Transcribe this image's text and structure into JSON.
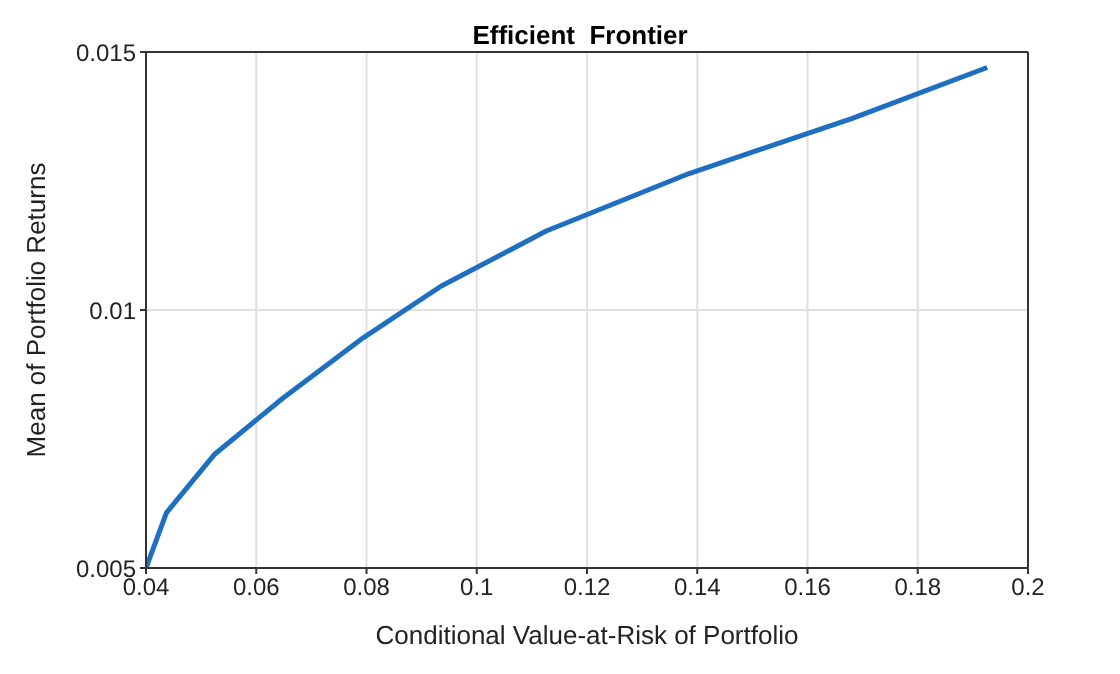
{
  "chart_data": {
    "type": "line",
    "title": "Efficient  Frontier",
    "xlabel": "Conditional Value-at-Risk of Portfolio",
    "ylabel": "Mean of Portfolio Returns",
    "x": [
      0.04,
      0.0437,
      0.0525,
      0.0647,
      0.0794,
      0.0935,
      0.1126,
      0.1384,
      0.168,
      0.1926
    ],
    "series": [
      {
        "color": "#1f6fc0",
        "values": [
          0.005,
          0.00607,
          0.00721,
          0.00828,
          0.00946,
          0.01046,
          0.01153,
          0.01264,
          0.01371,
          0.0147
        ]
      }
    ],
    "xlim": [
      0.04,
      0.2
    ],
    "xticks": [
      0.04,
      0.06,
      0.08,
      0.1,
      0.12,
      0.14,
      0.16,
      0.18,
      0.2
    ],
    "ylim": [
      0.005,
      0.015
    ],
    "yticks": [
      0.005,
      0.01,
      0.015
    ],
    "grid": true,
    "marker": "none",
    "line_style": "solid"
  }
}
